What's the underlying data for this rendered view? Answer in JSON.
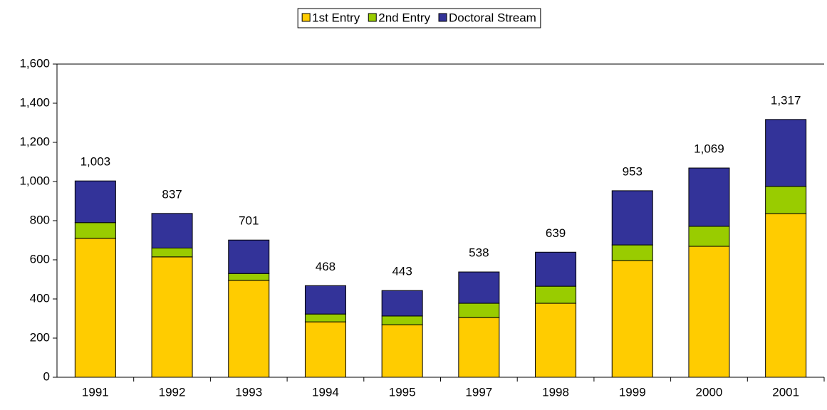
{
  "chart_data": {
    "type": "stacked_bar",
    "categories": [
      "1991",
      "1992",
      "1993",
      "1994",
      "1995",
      "1997",
      "1998",
      "1999",
      "2000",
      "2001"
    ],
    "series": [
      {
        "name": "1st Entry",
        "color": "#ffcc00",
        "values": [
          710,
          615,
          495,
          283,
          268,
          305,
          378,
          596,
          669,
          836
        ]
      },
      {
        "name": "2nd Entry",
        "color": "#99cc00",
        "values": [
          80,
          45,
          35,
          40,
          45,
          73,
          87,
          80,
          102,
          139
        ]
      },
      {
        "name": "Doctoral Stream",
        "color": "#333399",
        "values": [
          213,
          177,
          171,
          145,
          130,
          160,
          174,
          277,
          298,
          342
        ]
      }
    ],
    "totals": [
      1003,
      837,
      701,
      468,
      443,
      538,
      639,
      953,
      1069,
      1317
    ],
    "total_labels": [
      "1,003",
      "837",
      "701",
      "468",
      "443",
      "538",
      "639",
      "953",
      "1,069",
      "1,317"
    ],
    "ylim": [
      0,
      1600
    ],
    "yticks": [
      0,
      200,
      400,
      600,
      800,
      {
        "value": 1000,
        "label": "1,000"
      },
      {
        "value": 1200,
        "label": "1,200"
      },
      {
        "value": 1400,
        "label": "1,400"
      },
      {
        "value": 1600,
        "label": "1,600"
      }
    ],
    "grid": false,
    "legend": "top"
  }
}
